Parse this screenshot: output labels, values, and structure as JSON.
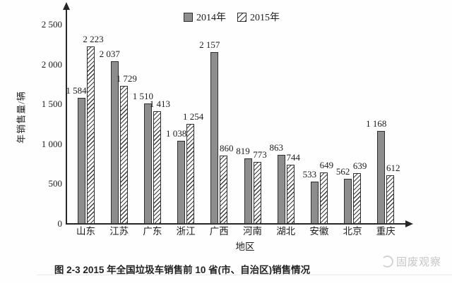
{
  "chart_data": {
    "type": "bar",
    "title": "图 2-3  2015 年全国垃圾车销售前 10 省(市、自治区)销售情况",
    "xlabel": "地区",
    "ylabel": "年销售量/辆",
    "categories": [
      "山东",
      "江苏",
      "广东",
      "浙江",
      "广西",
      "河南",
      "湖北",
      "安徽",
      "北京",
      "重庆"
    ],
    "series": [
      {
        "name": "2014年",
        "values": [
          1584,
          2037,
          1510,
          1038,
          2157,
          819,
          863,
          533,
          562,
          1168
        ]
      },
      {
        "name": "2015年",
        "values": [
          2223,
          1729,
          1413,
          1254,
          860,
          773,
          744,
          649,
          639,
          612
        ]
      }
    ],
    "y_ticks": [
      0,
      500,
      1000,
      1500,
      2000,
      2500
    ],
    "ylim": [
      0,
      2500
    ],
    "grid": false,
    "legend_position": "top-center",
    "bar_value_labels": true,
    "number_format": "space thousands separator (e.g. 1 584)",
    "colors": {
      "bar_2014_fill": "#8d8d8d",
      "bar_2015_fill": "#ffffff",
      "bar_2015_hatch": "#3c3c3c",
      "bar_outline": "#2e2e2e",
      "axis": "#262626",
      "text": "#1c1c1c"
    }
  },
  "watermark": {
    "icon": "swirl-logo",
    "text": "固废观察",
    "color": "#c6c6c6"
  }
}
